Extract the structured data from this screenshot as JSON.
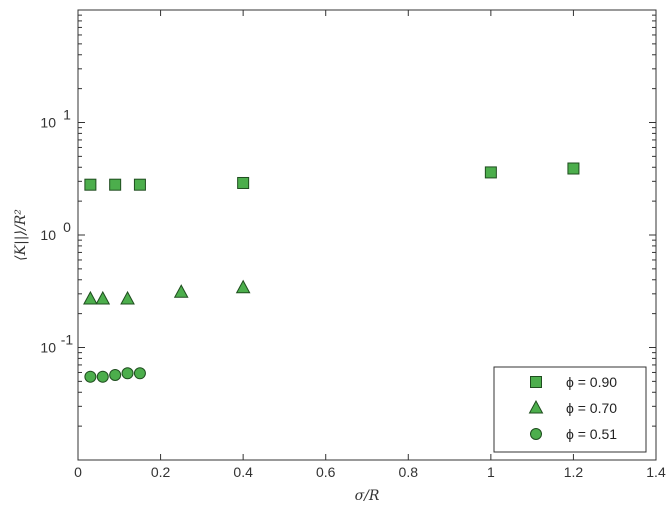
{
  "chart_data": {
    "type": "scatter",
    "title": "",
    "xlabel": "σ/R",
    "ylabel": "⟨K||⟩/R²",
    "xlim": [
      0,
      1.4
    ],
    "ylim": [
      0.01,
      100
    ],
    "yscale": "log",
    "grid": false,
    "legend_position": "bottom-right",
    "marker_color": "#4cae4c",
    "marker_edge_color": "#1f4d1f",
    "x_ticks": [
      {
        "value": 0,
        "label": "0"
      },
      {
        "value": 0.2,
        "label": "0.2"
      },
      {
        "value": 0.4,
        "label": "0.4"
      },
      {
        "value": 0.6,
        "label": "0.6"
      },
      {
        "value": 0.8,
        "label": "0.8"
      },
      {
        "value": 1,
        "label": "1"
      },
      {
        "value": 1.2,
        "label": "1.2"
      },
      {
        "value": 1.4,
        "label": "1.4"
      }
    ],
    "y_ticks": [
      {
        "value": 0.1,
        "base": "10",
        "exp": "-1"
      },
      {
        "value": 1,
        "base": "10",
        "exp": "0"
      },
      {
        "value": 10,
        "base": "10",
        "exp": "1"
      }
    ],
    "series": [
      {
        "name": "ϕ = 0.90",
        "marker": "square",
        "points": [
          [
            0.03,
            2.8
          ],
          [
            0.09,
            2.8
          ],
          [
            0.15,
            2.8
          ],
          [
            0.4,
            2.9
          ],
          [
            1.0,
            3.6
          ],
          [
            1.2,
            3.9
          ]
        ]
      },
      {
        "name": "ϕ = 0.70",
        "marker": "triangle",
        "points": [
          [
            0.03,
            0.27
          ],
          [
            0.06,
            0.27
          ],
          [
            0.12,
            0.27
          ],
          [
            0.25,
            0.31
          ],
          [
            0.4,
            0.34
          ]
        ]
      },
      {
        "name": "ϕ = 0.51",
        "marker": "circle",
        "points": [
          [
            0.03,
            0.055
          ],
          [
            0.06,
            0.055
          ],
          [
            0.09,
            0.057
          ],
          [
            0.12,
            0.059
          ],
          [
            0.15,
            0.059
          ]
        ]
      }
    ]
  }
}
